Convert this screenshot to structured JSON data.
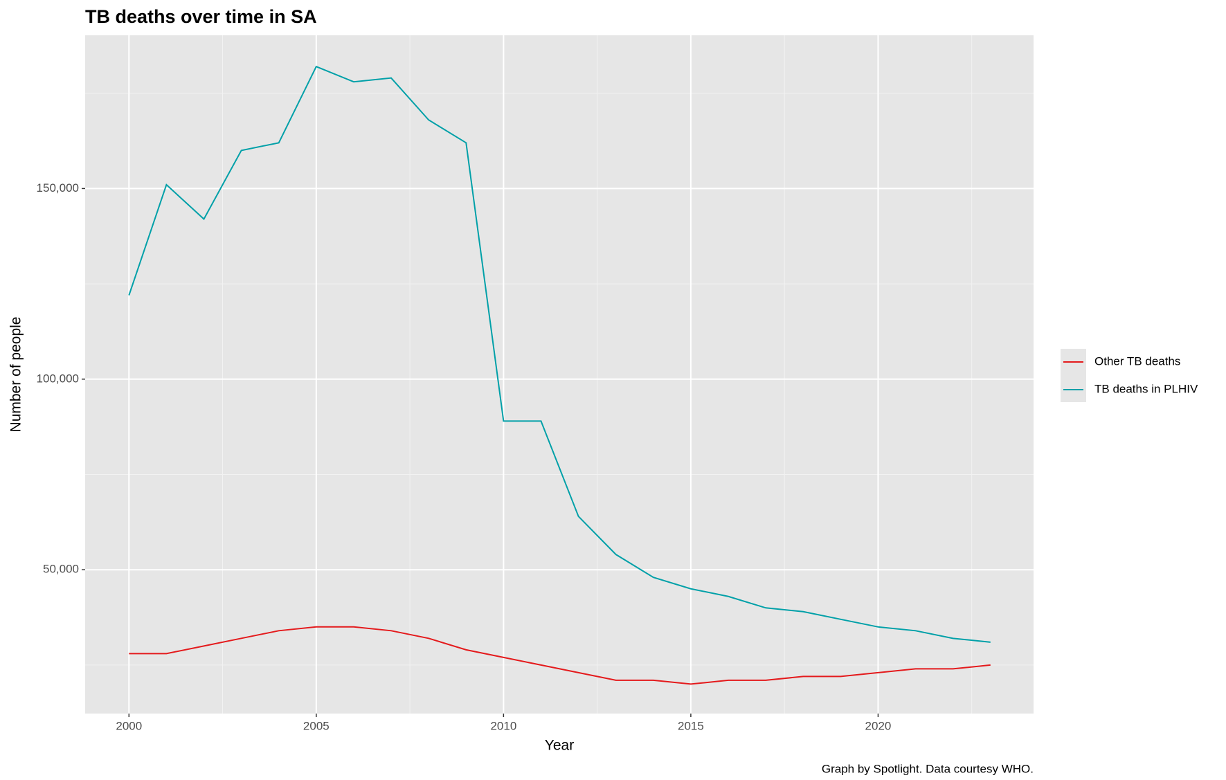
{
  "chart_data": {
    "type": "line",
    "title": "TB deaths over time in SA",
    "x_label": "Year",
    "y_label": "Number of people",
    "caption": "Graph by Spotlight. Data courtesy WHO.",
    "x": [
      2000,
      2001,
      2002,
      2003,
      2004,
      2005,
      2006,
      2007,
      2008,
      2009,
      2010,
      2011,
      2012,
      2013,
      2014,
      2015,
      2016,
      2017,
      2018,
      2019,
      2020,
      2021,
      2022,
      2023
    ],
    "series": [
      {
        "name": "Other TB deaths",
        "color": "#e41a1c",
        "values": [
          28000,
          28000,
          30000,
          32000,
          34000,
          35000,
          35000,
          34000,
          32000,
          29000,
          27000,
          25000,
          23000,
          21000,
          21000,
          20000,
          21000,
          21000,
          22000,
          22000,
          23000,
          24000,
          24000,
          25000
        ]
      },
      {
        "name": "TB deaths in PLHIV",
        "color": "#00a0a8",
        "values": [
          122000,
          151000,
          142000,
          160000,
          162000,
          182000,
          178000,
          179000,
          168000,
          162000,
          89000,
          89000,
          64000,
          54000,
          48000,
          45000,
          43000,
          40000,
          39000,
          37000,
          35000,
          34000,
          32000,
          31000
        ]
      }
    ],
    "xlim": [
      1998.83,
      2024.15
    ],
    "xticks": [
      2000,
      2005,
      2010,
      2015,
      2020
    ],
    "xminor": [
      2002.5,
      2007.5,
      2012.5,
      2017.5,
      2022.5
    ],
    "ylim": [
      12270,
      190200
    ],
    "yticks": [
      {
        "value": 50000,
        "label": "50,000"
      },
      {
        "value": 100000,
        "label": "100,000"
      },
      {
        "value": 150000,
        "label": "150,000"
      }
    ],
    "yminor": [
      25000,
      75000,
      125000,
      175000
    ],
    "grid": true,
    "legend": "right"
  }
}
